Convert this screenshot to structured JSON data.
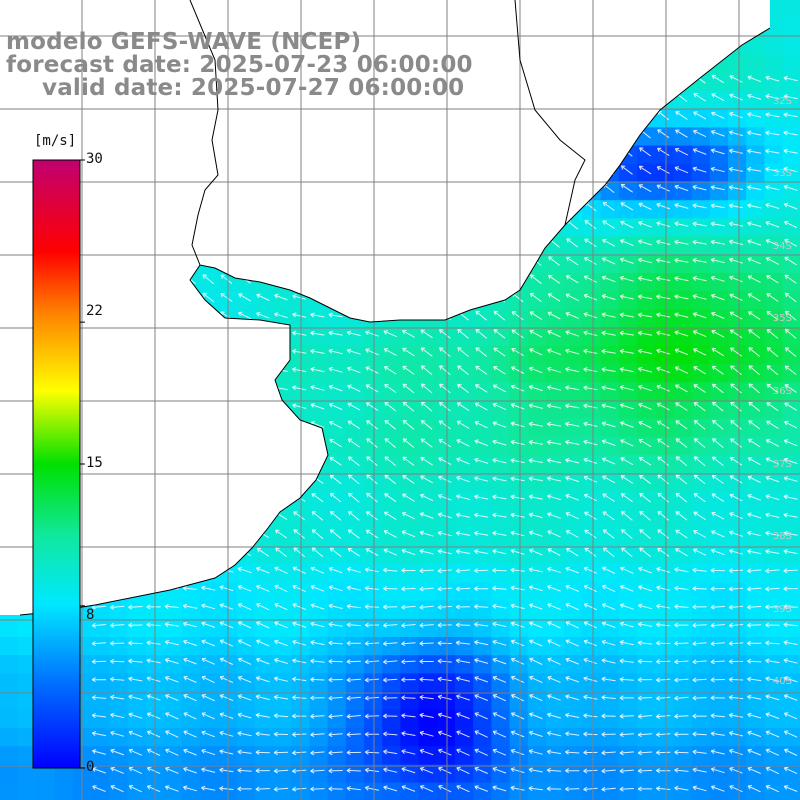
{
  "header": {
    "title": "modelo GEFS-WAVE (NCEP)",
    "forecast_date": "forecast date: 2025-07-23 06:00:00",
    "valid_date": "valid date: 2025-07-27 06:00:00"
  },
  "colorbar": {
    "unit": "[m/s]",
    "ticks": [
      "30",
      "22",
      "15",
      "8",
      "0"
    ],
    "tick_values": [
      30,
      22,
      15,
      8,
      0
    ],
    "min": 0,
    "max": 30,
    "colors": [
      "#0000ff",
      "#0080ff",
      "#00d8f0",
      "#10e8b0",
      "#00e000",
      "#ffff00",
      "#ff8000",
      "#ff0000",
      "#c00070"
    ]
  },
  "map": {
    "land_color": "#ffffff",
    "grid_color": "#808080",
    "coast_color": "#000000",
    "arrow_color": "#ffffff",
    "lat_labels": [
      "32S",
      "33S",
      "34S",
      "35S",
      "36S",
      "37S",
      "38S",
      "39S",
      "40S"
    ]
  }
}
